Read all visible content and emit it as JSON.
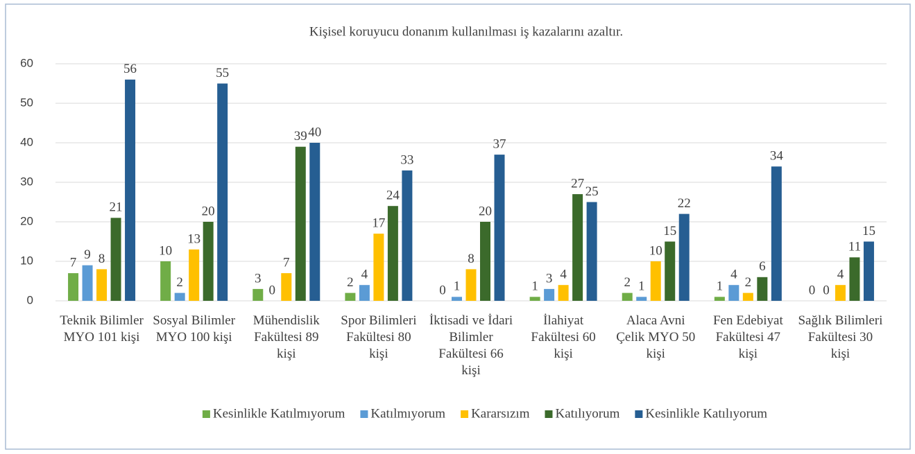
{
  "chart_data": {
    "type": "bar",
    "title": "Kişisel koruyucu donanım kullanılması iş kazalarını azaltır.",
    "categories": [
      "Teknik Bilimler MYO 101 kişi",
      "Sosyal Bilimler MYO 100 kişi",
      "Mühendislik Fakültesi 89 kişi",
      "Spor Bilimleri Fakültesi 80 kişi",
      "İktisadi ve İdari Bilimler Fakültesi 66 kişi",
      "İlahiyat Fakültesi 60 kişi",
      "Alaca Avni Çelik MYO 50 kişi",
      "Fen Edebiyat Fakültesi 47 kişi",
      "Sağlık Bilimleri Fakültesi 30 kişi"
    ],
    "series": [
      {
        "name": "Kesinlikle Katılmıyorum",
        "color": "#70ad47",
        "values": [
          7,
          10,
          3,
          2,
          0,
          1,
          2,
          1,
          0
        ]
      },
      {
        "name": "Katılmıyorum",
        "color": "#5b9bd5",
        "values": [
          9,
          2,
          0,
          4,
          1,
          3,
          1,
          4,
          0
        ]
      },
      {
        "name": "Kararsızım",
        "color": "#ffc000",
        "values": [
          8,
          13,
          7,
          17,
          8,
          4,
          10,
          2,
          4
        ]
      },
      {
        "name": "Katılıyorum",
        "color": "#3b6a2b",
        "values": [
          21,
          20,
          39,
          24,
          20,
          27,
          15,
          6,
          11
        ]
      },
      {
        "name": "Kesinlikle Katılıyorum",
        "color": "#265e92",
        "values": [
          56,
          55,
          40,
          33,
          37,
          25,
          22,
          34,
          15
        ]
      }
    ],
    "ylim": [
      0,
      60
    ],
    "yticks": [
      0,
      10,
      20,
      30,
      40,
      50,
      60
    ],
    "grid": true,
    "legend": "bottom"
  }
}
